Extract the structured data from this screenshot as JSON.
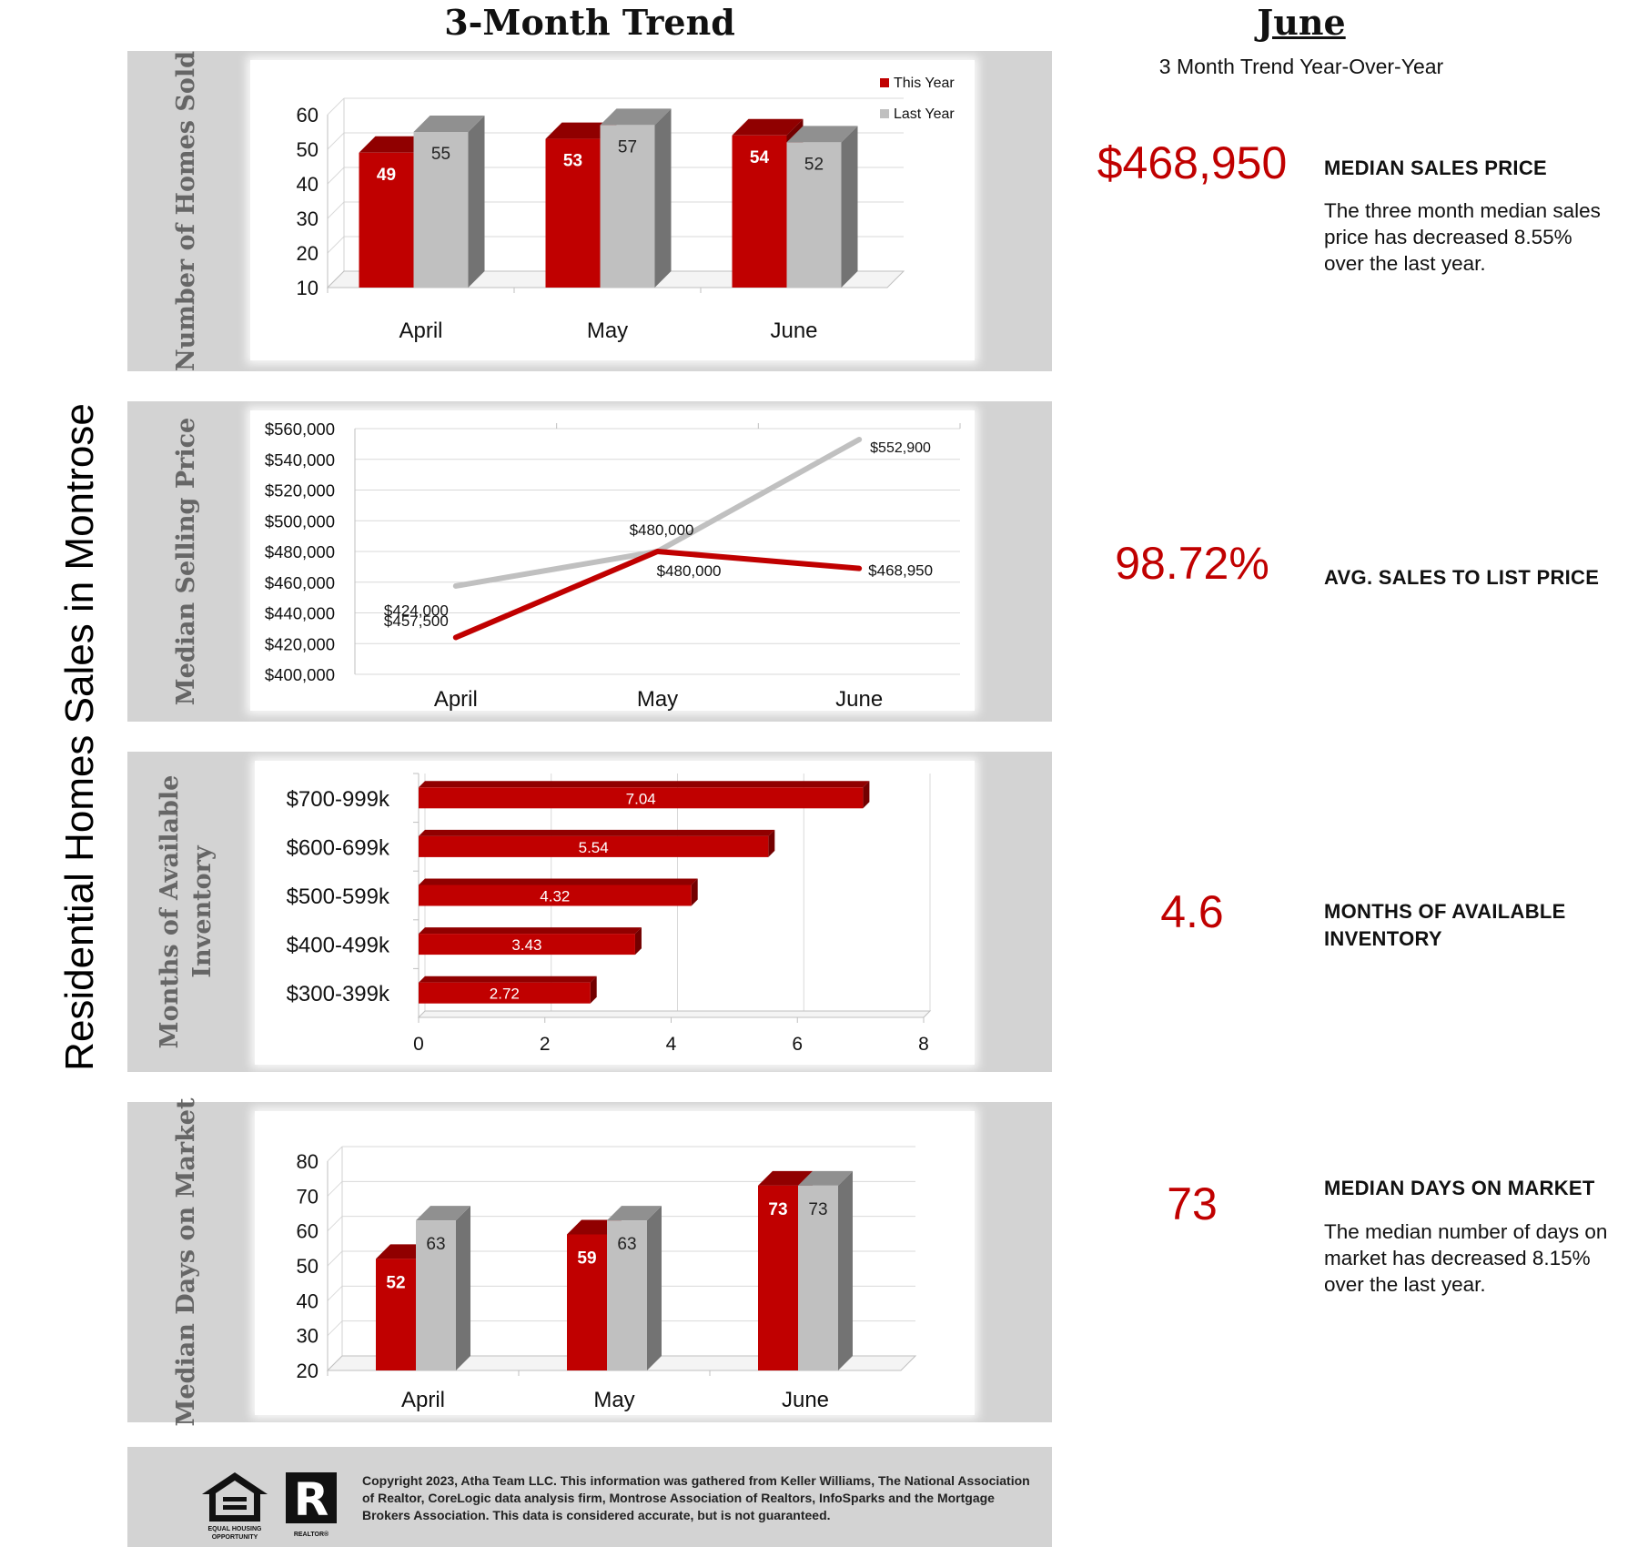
{
  "header": {
    "trend_title": "3-Month Trend",
    "month_title": "June",
    "subtitle": "3 Month Trend Year-Over-Year"
  },
  "vertical_title": "Residential Homes Sales in Montrose",
  "colors": {
    "this_year": "#c00000",
    "last_year": "#c0c0c0",
    "panel_bg": "#d3d3d3",
    "accent_text": "#c00000"
  },
  "panels": {
    "homes_sold": {
      "label": "Number of Homes Sold"
    },
    "selling_price": {
      "label": "Median Selling Price"
    },
    "inventory": {
      "label_line1": "Months of Available",
      "label_line2": "Inventory"
    },
    "days_on_market": {
      "label": "Median Days on Market"
    }
  },
  "chart_data": [
    {
      "id": "homes_sold",
      "type": "bar",
      "categories": [
        "April",
        "May",
        "June"
      ],
      "series": [
        {
          "name": "This Year",
          "values": [
            49,
            53,
            54
          ]
        },
        {
          "name": "Last Year",
          "values": [
            55,
            57,
            52
          ]
        }
      ],
      "ylabel": "Number of Homes Sold",
      "ylim": [
        10,
        60
      ],
      "yticks": [
        10,
        20,
        30,
        40,
        50,
        60
      ],
      "legend": "top-right"
    },
    {
      "id": "selling_price",
      "type": "line",
      "categories": [
        "April",
        "May",
        "June"
      ],
      "series": [
        {
          "name": "This Year",
          "values": [
            424000,
            480000,
            468950
          ],
          "labels": [
            "$424,000",
            "$480,000",
            "$468,950"
          ]
        },
        {
          "name": "Last Year",
          "values": [
            457500,
            480000,
            552900
          ],
          "labels": [
            "$457,500",
            "$480,000",
            "$552,900"
          ]
        }
      ],
      "ylabel": "Median Selling Price",
      "ylim": [
        400000,
        560000
      ],
      "yticks": [
        "$400,000",
        "$420,000",
        "$440,000",
        "$460,000",
        "$480,000",
        "$500,000",
        "$520,000",
        "$540,000",
        "$560,000"
      ]
    },
    {
      "id": "inventory",
      "type": "bar",
      "orientation": "horizontal",
      "categories": [
        "$700-999k",
        "$600-699k",
        "$500-599k",
        "$400-499k",
        "$300-399k"
      ],
      "values": [
        7.04,
        5.54,
        4.32,
        3.43,
        2.72
      ],
      "ylabel": "Months of Available Inventory",
      "xlim": [
        0,
        8
      ],
      "xticks": [
        0,
        2,
        4,
        6,
        8
      ]
    },
    {
      "id": "days_on_market",
      "type": "bar",
      "categories": [
        "April",
        "May",
        "June"
      ],
      "series": [
        {
          "name": "This Year",
          "values": [
            52,
            59,
            73
          ]
        },
        {
          "name": "Last Year",
          "values": [
            63,
            63,
            73
          ]
        }
      ],
      "ylabel": "Median Days on Market",
      "ylim": [
        20,
        80
      ],
      "yticks": [
        20,
        30,
        40,
        50,
        60,
        70,
        80
      ]
    }
  ],
  "stats": [
    {
      "value": "$468,950",
      "label": "MEDIAN SALES PRICE",
      "description": "The three month median sales price has decreased 8.55% over the last year."
    },
    {
      "value": "98.72%",
      "label": "AVG. SALES TO LIST PRICE",
      "description": ""
    },
    {
      "value": "4.6",
      "label_line1": "MONTHS OF AVAILABLE",
      "label_line2": "INVENTORY",
      "description": ""
    },
    {
      "value": "73",
      "label": "MEDIAN DAYS ON MARKET",
      "description": "The median number of days on market has decreased 8.15% over the last year."
    }
  ],
  "footer": {
    "copyright": "Copyright 2023, Atha Team LLC. This information was gathered from Keller Williams, The National Association of Realtor, CoreLogic data analysis firm, Montrose Association of Realtors, InfoSparks and the Mortgage Brokers Association.  This data is considered accurate, but is not guaranteed.",
    "eho_caption_1": "EQUAL HOUSING",
    "eho_caption_2": "OPPORTUNITY",
    "realtor_caption": "REALTOR®",
    "realtor_mark": "R"
  }
}
